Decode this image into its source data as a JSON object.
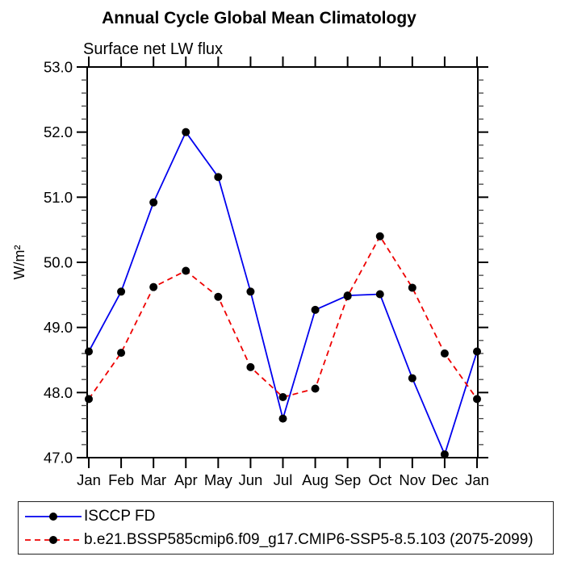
{
  "chart_data": {
    "type": "line",
    "title": "Annual Cycle Global Mean Climatology",
    "subtitle": "Surface net LW flux",
    "xlabel": "",
    "ylabel": "W/m²",
    "categories": [
      "Jan",
      "Feb",
      "Mar",
      "Apr",
      "May",
      "Jun",
      "Jul",
      "Aug",
      "Sep",
      "Oct",
      "Nov",
      "Dec",
      "Jan"
    ],
    "ylim": [
      47.0,
      53.0
    ],
    "ytick_step": 1.0,
    "ytick_minor_step": 0.2,
    "ytick_labels": [
      "47.0",
      "48.0",
      "49.0",
      "50.0",
      "51.0",
      "52.0",
      "53.0"
    ],
    "grid": false,
    "frame": "box-with-outward-ticks",
    "legend_position": "bottom-left-box",
    "series": [
      {
        "name": "ISCCP FD",
        "color": "#0000ee",
        "style": "solid",
        "marker": "filled-circle",
        "marker_color": "#000000",
        "values": [
          48.63,
          49.55,
          50.92,
          52.0,
          51.31,
          49.55,
          47.6,
          49.27,
          49.49,
          49.51,
          48.22,
          47.05,
          48.63
        ]
      },
      {
        "name": "b.e21.BSSP585cmip6.f09_g17.CMIP6-SSP5-8.5.103 (2075-2099)",
        "color": "#ee0000",
        "style": "dashed",
        "marker": "filled-circle",
        "marker_color": "#000000",
        "values": [
          47.9,
          48.61,
          49.62,
          49.87,
          49.47,
          48.39,
          47.93,
          48.06,
          49.48,
          50.4,
          49.61,
          48.6,
          47.9
        ]
      }
    ]
  }
}
